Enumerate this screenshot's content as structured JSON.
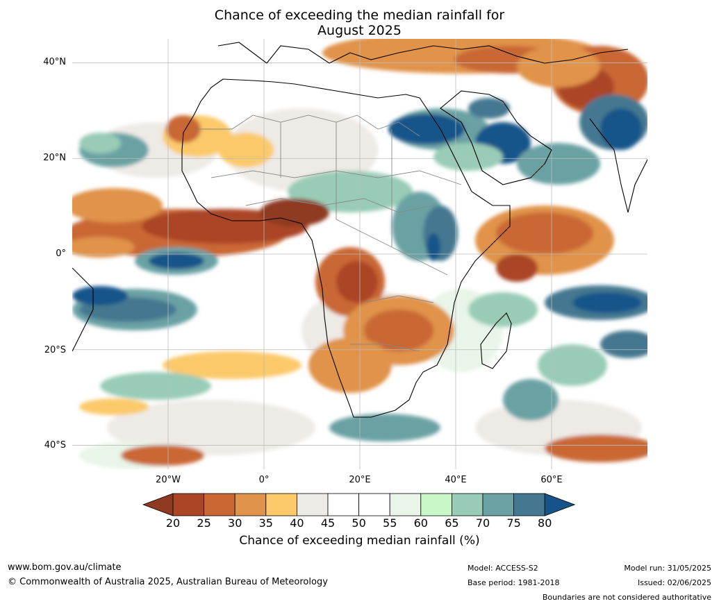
{
  "title_line1": "Chance of exceeding the median rainfall for",
  "title_line2": "August 2025",
  "latitude_labels": [
    {
      "value": 40,
      "label": "40°N"
    },
    {
      "value": 20,
      "label": "20°N"
    },
    {
      "value": 0,
      "label": "0°"
    },
    {
      "value": -20,
      "label": "20°S"
    },
    {
      "value": -40,
      "label": "40°S"
    }
  ],
  "longitude_labels": [
    {
      "value": -20,
      "label": "20°W"
    },
    {
      "value": 0,
      "label": "0°"
    },
    {
      "value": 20,
      "label": "20°E"
    },
    {
      "value": 40,
      "label": "40°E"
    },
    {
      "value": 60,
      "label": "60°E"
    }
  ],
  "map_extent": {
    "lon": [
      -40,
      80
    ],
    "lat": [
      -45,
      45
    ]
  },
  "colorbar": {
    "title": "Chance of exceeding median rainfall (%)",
    "ticks": [
      "20",
      "25",
      "30",
      "35",
      "40",
      "45",
      "50",
      "55",
      "60",
      "65",
      "70",
      "75",
      "80"
    ],
    "colors": [
      "#8f3a20",
      "#aa4526",
      "#c96834",
      "#e0934a",
      "#fbc96a",
      "#eeeae6",
      "#ffffff",
      "#ffffff",
      "#e8f5e8",
      "#c8f7c8",
      "#98ccb6",
      "#6aa2a4",
      "#457890",
      "#15548a"
    ]
  },
  "footer": {
    "url": "www.bom.gov.au/climate",
    "copyright": "© Commonwealth of Australia 2025, Australian Bureau of Meteorology",
    "model": "Model: ACCESS-S2",
    "base_period": "Base period: 1981-2018",
    "model_run": "Model run: 31/05/2025",
    "issued": "Issued: 02/06/2025",
    "boundaries_note": "Boundaries are not considered authoritative"
  }
}
